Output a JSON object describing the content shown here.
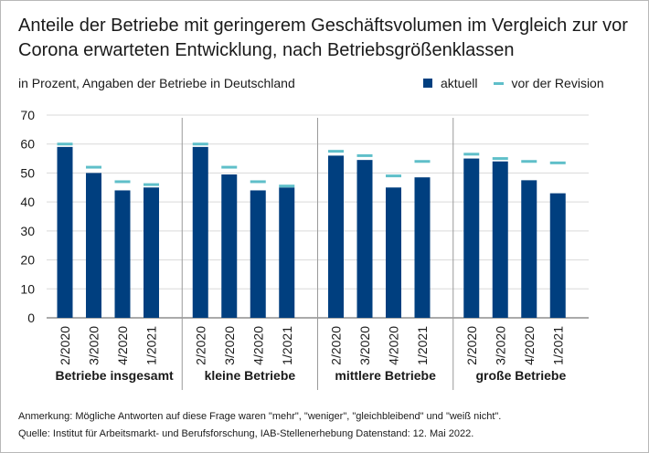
{
  "chart_data": {
    "type": "bar",
    "title": "Anteile der Betriebe mit geringerem Geschäftsvolumen im Vergleich zur vor Corona erwarteten Entwicklung, nach Betriebsgrößenklassen",
    "subtitle": "in Prozent, Angaben der Betriebe in Deutschland",
    "legend": [
      {
        "label": "aktuell",
        "color": "#003f7f",
        "style": "bar"
      },
      {
        "label": "vor der Revision",
        "color": "#5fbfc9",
        "style": "line"
      }
    ],
    "ylim": [
      0,
      70
    ],
    "yticks": [
      0,
      10,
      20,
      30,
      40,
      50,
      60,
      70
    ],
    "groups": [
      {
        "name": "Betriebe insgesamt",
        "categories": [
          "2/2020",
          "3/2020",
          "4/2020",
          "1/2021"
        ],
        "aktuell": [
          59,
          50,
          44,
          45
        ],
        "vor_der_revision": [
          60,
          52,
          47,
          46
        ]
      },
      {
        "name": "kleine Betriebe",
        "categories": [
          "2/2020",
          "3/2020",
          "4/2020",
          "1/2021"
        ],
        "aktuell": [
          59,
          49.5,
          44,
          45
        ],
        "vor_der_revision": [
          60,
          52,
          47,
          45.5
        ]
      },
      {
        "name": "mittlere Betriebe",
        "categories": [
          "2/2020",
          "3/2020",
          "4/2020",
          "1/2021"
        ],
        "aktuell": [
          56,
          54.5,
          45,
          48.5
        ],
        "vor_der_revision": [
          57.5,
          56,
          49,
          54
        ]
      },
      {
        "name": "große Betriebe",
        "categories": [
          "2/2020",
          "3/2020",
          "4/2020",
          "1/2021"
        ],
        "aktuell": [
          55,
          54,
          47.5,
          43
        ],
        "vor_der_revision": [
          56.5,
          55,
          54,
          53.5
        ]
      }
    ]
  },
  "notes": {
    "remark": "Anmerkung: Mögliche Antworten auf diese Frage waren \"mehr\", \"weniger\", \"gleichbleibend\" und \"weiß nicht\".",
    "source": "Quelle: Institut für Arbeitsmarkt- und Berufsforschung, IAB-Stellenerhebung Datenstand: 12. Mai 2022."
  }
}
